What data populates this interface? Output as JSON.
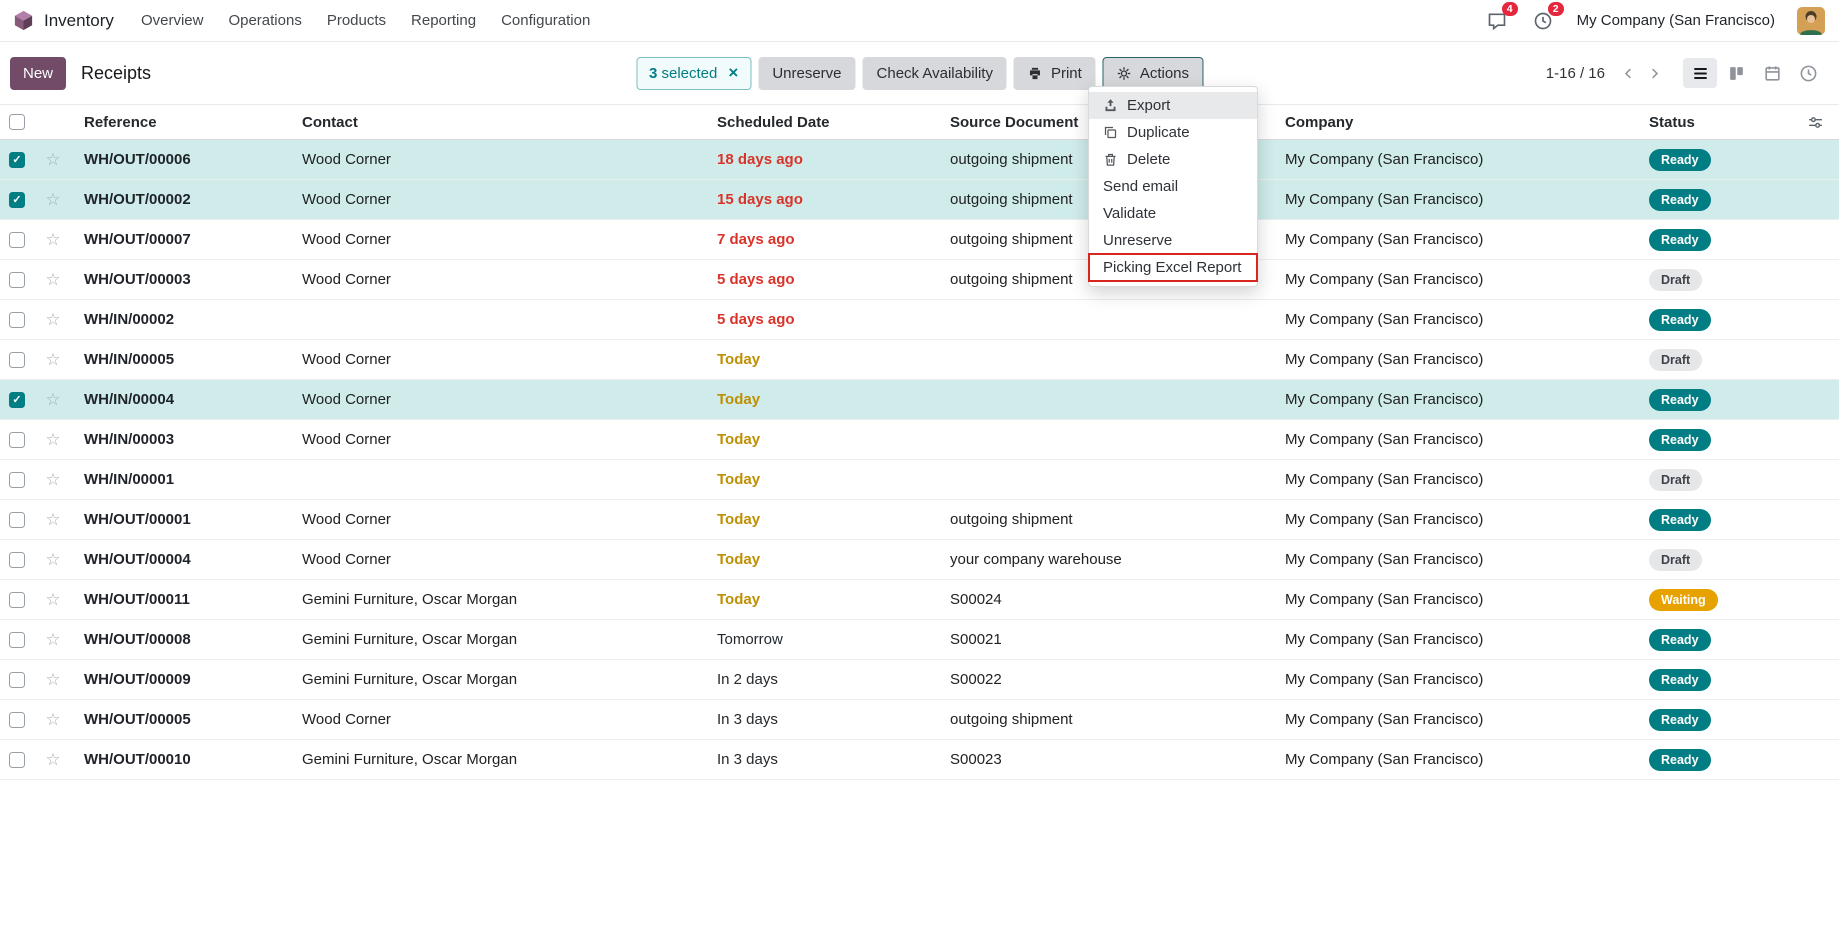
{
  "navbar": {
    "app_name": "Inventory",
    "menu_items": [
      "Overview",
      "Operations",
      "Products",
      "Reporting",
      "Configuration"
    ],
    "messages_badge": "4",
    "activities_badge": "2",
    "company_name": "My Company (San Francisco)"
  },
  "control_panel": {
    "new_label": "New",
    "title": "Receipts",
    "selected_chip": {
      "count": "3",
      "label": "selected",
      "close_icon": "clear-selection-icon"
    },
    "unreserve_label": "Unreserve",
    "check_availability_label": "Check Availability",
    "print_label": "Print",
    "print_icon": "printer-icon",
    "actions_label": "Actions",
    "actions_icon": "gear-icon",
    "pager": "1-16 / 16",
    "view_switcher": {
      "views": [
        "list",
        "kanban",
        "calendar",
        "activity"
      ],
      "active": "list"
    }
  },
  "actions_menu": {
    "items": [
      {
        "label": "Export",
        "icon": "upload-icon",
        "hovered": true
      },
      {
        "label": "Duplicate",
        "icon": "copy-icon"
      },
      {
        "label": "Delete",
        "icon": "trash-icon"
      },
      {
        "label": "Send email"
      },
      {
        "label": "Validate"
      },
      {
        "label": "Unreserve"
      },
      {
        "label": "Picking Excel Report",
        "annotated": true
      }
    ]
  },
  "table": {
    "columns": [
      "Reference",
      "Contact",
      "Scheduled Date",
      "Source Document",
      "Company",
      "Status"
    ],
    "rows": [
      {
        "reference": "WH/OUT/00006",
        "contact": "Wood Corner",
        "scheduled": "18 days ago",
        "scheduled_tone": "danger",
        "source": "outgoing shipment",
        "company": "My Company (San Francisco)",
        "status": "Ready",
        "status_tone": "ready",
        "selected": true
      },
      {
        "reference": "WH/OUT/00002",
        "contact": "Wood Corner",
        "scheduled": "15 days ago",
        "scheduled_tone": "danger",
        "source": "outgoing shipment",
        "company": "My Company (San Francisco)",
        "status": "Ready",
        "status_tone": "ready",
        "selected": true
      },
      {
        "reference": "WH/OUT/00007",
        "contact": "Wood Corner",
        "scheduled": "7 days ago",
        "scheduled_tone": "danger",
        "source": "outgoing shipment",
        "company": "My Company (San Francisco)",
        "status": "Ready",
        "status_tone": "ready",
        "selected": false
      },
      {
        "reference": "WH/OUT/00003",
        "contact": "Wood Corner",
        "scheduled": "5 days ago",
        "scheduled_tone": "danger",
        "source": "outgoing shipment",
        "company": "My Company (San Francisco)",
        "status": "Draft",
        "status_tone": "draft",
        "selected": false
      },
      {
        "reference": "WH/IN/00002",
        "contact": "",
        "scheduled": "5 days ago",
        "scheduled_tone": "danger",
        "source": "",
        "company": "My Company (San Francisco)",
        "status": "Ready",
        "status_tone": "ready",
        "selected": false
      },
      {
        "reference": "WH/IN/00005",
        "contact": "Wood Corner",
        "scheduled": "Today",
        "scheduled_tone": "warning",
        "source": "",
        "company": "My Company (San Francisco)",
        "status": "Draft",
        "status_tone": "draft",
        "selected": false
      },
      {
        "reference": "WH/IN/00004",
        "contact": "Wood Corner",
        "scheduled": "Today",
        "scheduled_tone": "warning",
        "source": "",
        "company": "My Company (San Francisco)",
        "status": "Ready",
        "status_tone": "ready",
        "selected": true
      },
      {
        "reference": "WH/IN/00003",
        "contact": "Wood Corner",
        "scheduled": "Today",
        "scheduled_tone": "warning",
        "source": "",
        "company": "My Company (San Francisco)",
        "status": "Ready",
        "status_tone": "ready",
        "selected": false
      },
      {
        "reference": "WH/IN/00001",
        "contact": "",
        "scheduled": "Today",
        "scheduled_tone": "warning",
        "source": "",
        "company": "My Company (San Francisco)",
        "status": "Draft",
        "status_tone": "draft",
        "selected": false
      },
      {
        "reference": "WH/OUT/00001",
        "contact": "Wood Corner",
        "scheduled": "Today",
        "scheduled_tone": "warning",
        "source": "outgoing shipment",
        "company": "My Company (San Francisco)",
        "status": "Ready",
        "status_tone": "ready",
        "selected": false
      },
      {
        "reference": "WH/OUT/00004",
        "contact": "Wood Corner",
        "scheduled": "Today",
        "scheduled_tone": "warning",
        "source": "your company warehouse",
        "company": "My Company (San Francisco)",
        "status": "Draft",
        "status_tone": "draft",
        "selected": false
      },
      {
        "reference": "WH/OUT/00011",
        "contact": "Gemini Furniture, Oscar Morgan",
        "scheduled": "Today",
        "scheduled_tone": "warning",
        "source": "S00024",
        "company": "My Company (San Francisco)",
        "status": "Waiting",
        "status_tone": "waiting",
        "selected": false
      },
      {
        "reference": "WH/OUT/00008",
        "contact": "Gemini Furniture, Oscar Morgan",
        "scheduled": "Tomorrow",
        "scheduled_tone": "normal",
        "source": "S00021",
        "company": "My Company (San Francisco)",
        "status": "Ready",
        "status_tone": "ready",
        "selected": false
      },
      {
        "reference": "WH/OUT/00009",
        "contact": "Gemini Furniture, Oscar Morgan",
        "scheduled": "In 2 days",
        "scheduled_tone": "normal",
        "source": "S00022",
        "company": "My Company (San Francisco)",
        "status": "Ready",
        "status_tone": "ready",
        "selected": false
      },
      {
        "reference": "WH/OUT/00005",
        "contact": "Wood Corner",
        "scheduled": "In 3 days",
        "scheduled_tone": "normal",
        "source": "outgoing shipment",
        "company": "My Company (San Francisco)",
        "status": "Ready",
        "status_tone": "ready",
        "selected": false
      },
      {
        "reference": "WH/OUT/00010",
        "contact": "Gemini Furniture, Oscar Morgan",
        "scheduled": "In 3 days",
        "scheduled_tone": "normal",
        "source": "S00023",
        "company": "My Company (San Francisco)",
        "status": "Ready",
        "status_tone": "ready",
        "selected": false
      }
    ]
  },
  "colors": {
    "accent_teal": "#017e84",
    "primary_purple": "#714b67",
    "danger_red": "#d9342b",
    "warning_amber": "#bf8f00",
    "selected_row_bg": "#cfecea",
    "badge_ready_bg": "#017e84",
    "badge_draft_bg": "#e4e6e8",
    "badge_waiting_bg": "#e8a200",
    "notification_badge_bg": "#e5263d",
    "annotation_red": "#d9261c"
  }
}
